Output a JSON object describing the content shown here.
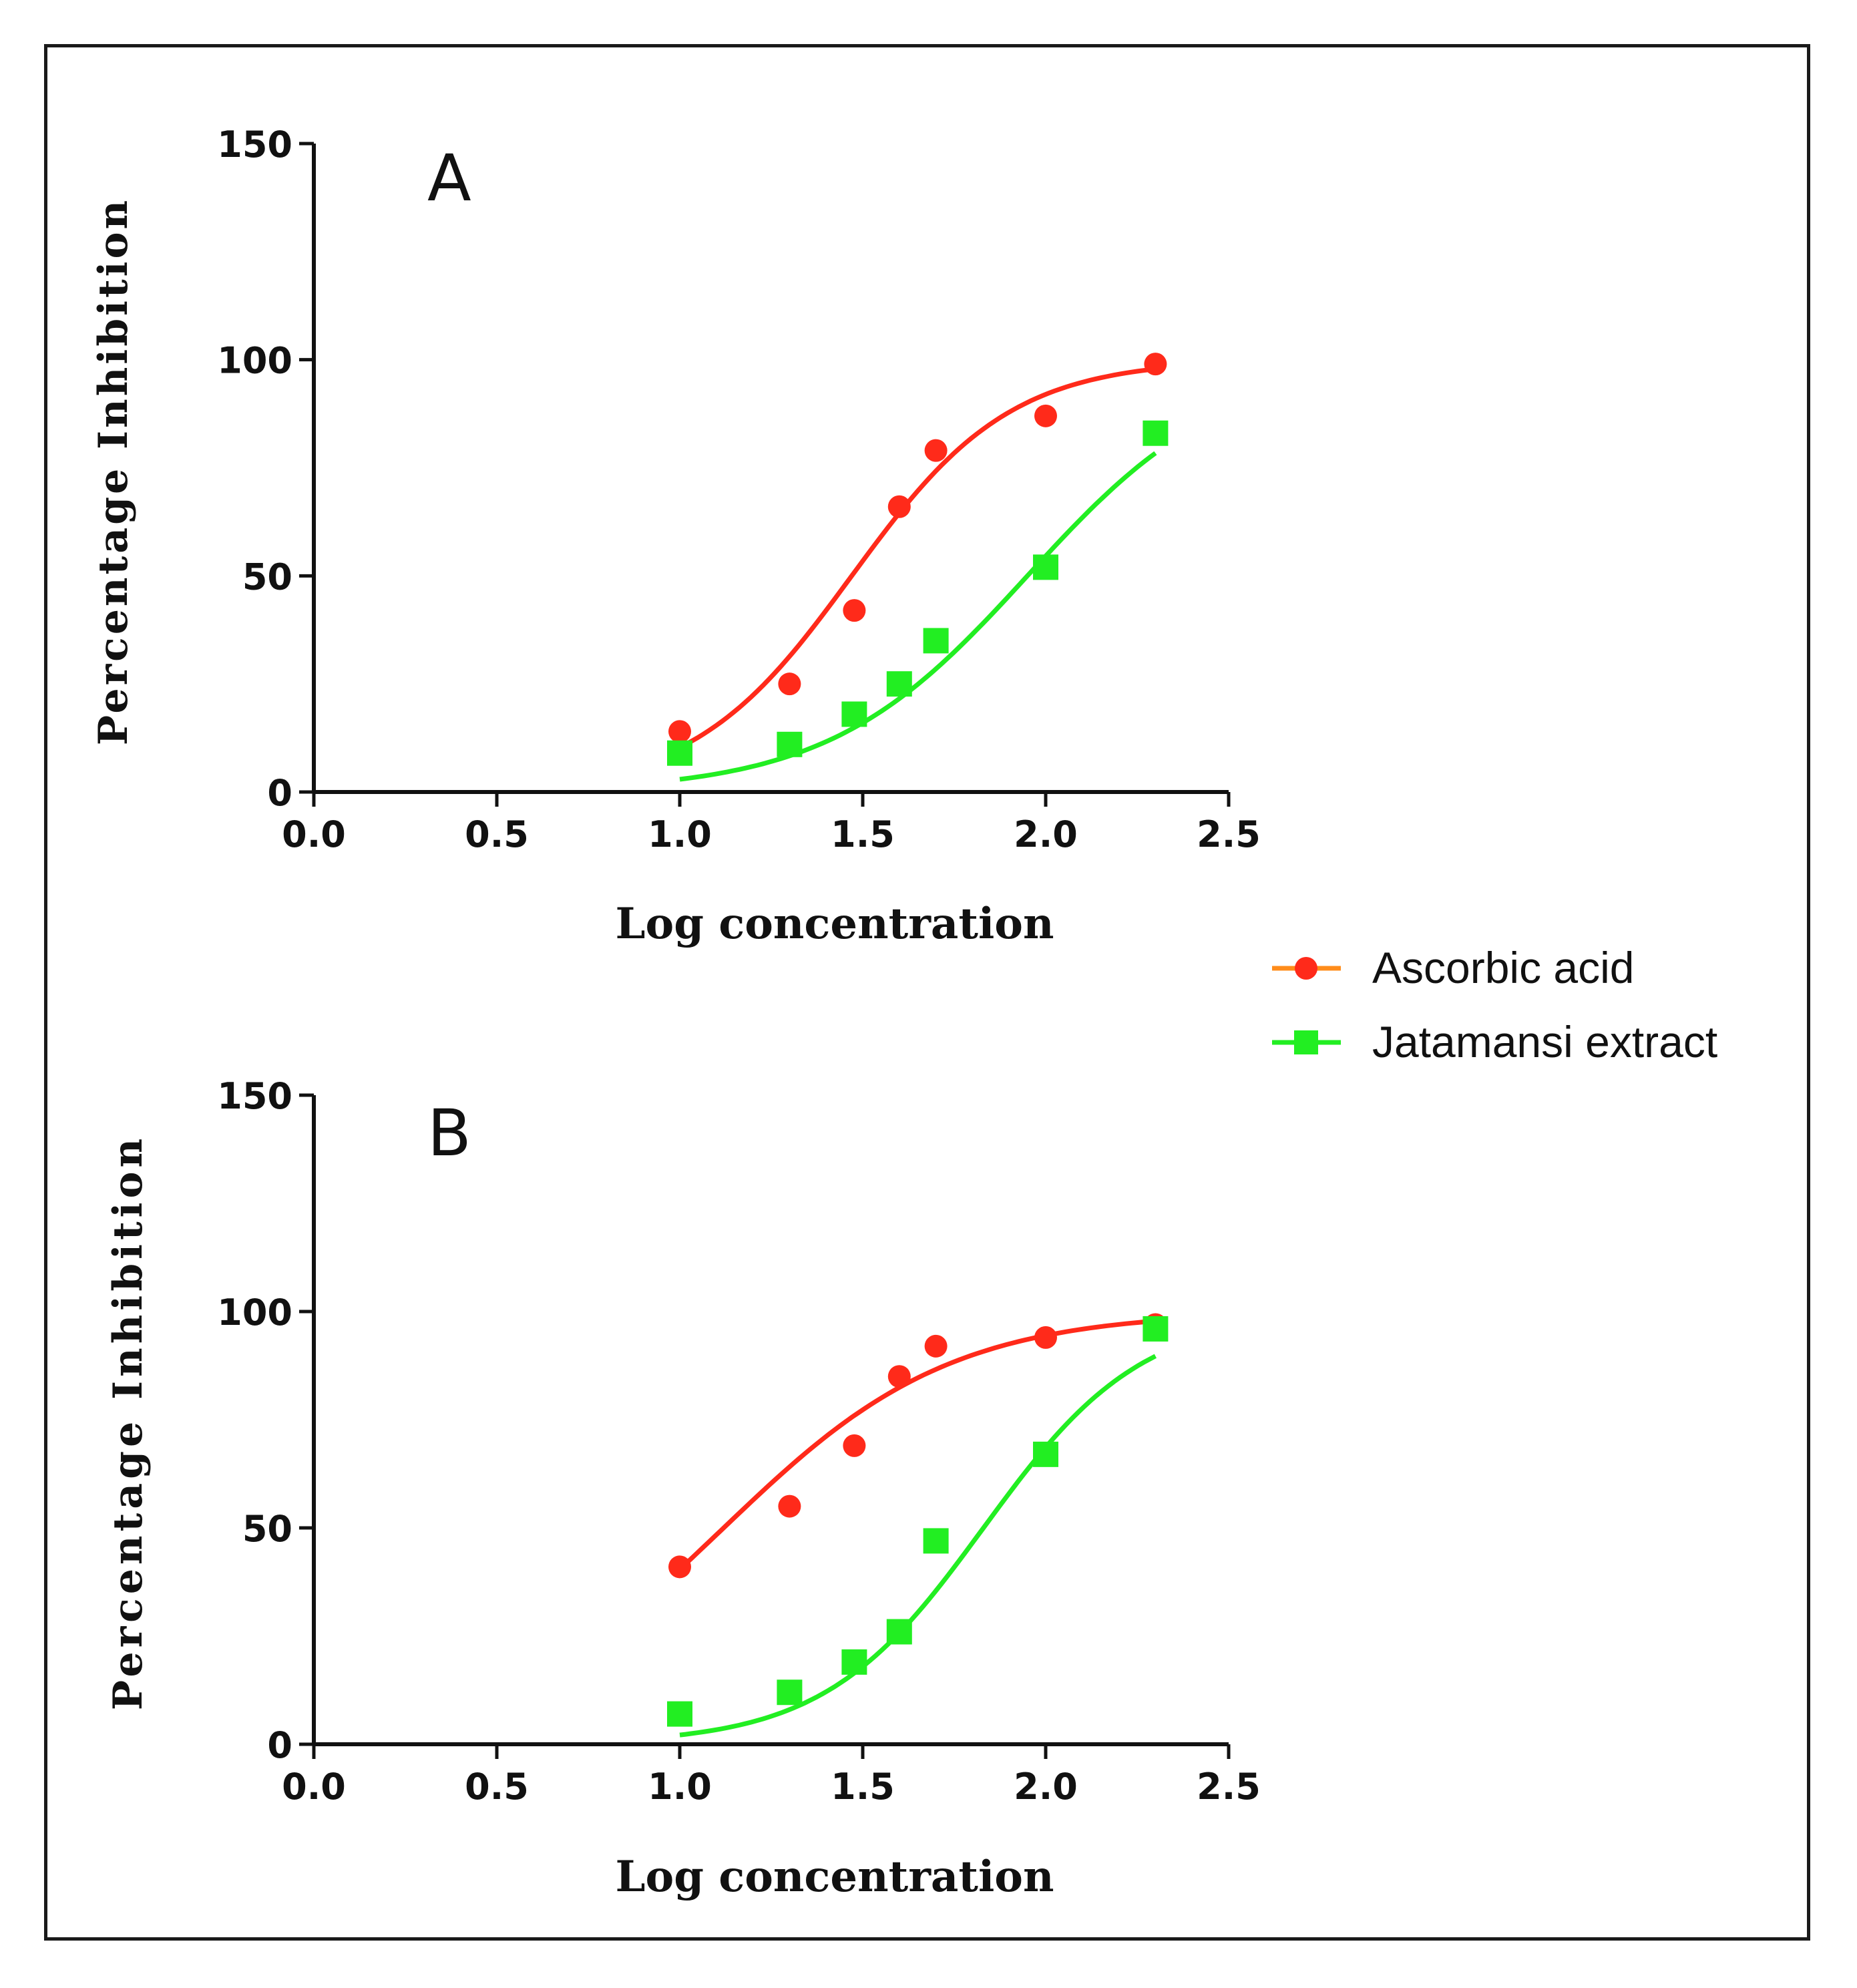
{
  "legend": [
    {
      "name": "Ascorbic acid",
      "color": "#ff2a1a",
      "marker": "circle"
    },
    {
      "name": "Jatamansi extract",
      "color": "#22ee22",
      "marker": "square"
    }
  ],
  "chart_data": [
    {
      "type": "scatter",
      "panel_label": "A",
      "xlabel": "Log concentration",
      "ylabel": "Percentage Inhibition",
      "xlim": [
        0.0,
        2.5
      ],
      "ylim": [
        0,
        150
      ],
      "x_ticks": [
        "0.0",
        "0.5",
        "1.0",
        "1.5",
        "2.0",
        "2.5"
      ],
      "y_ticks": [
        "0",
        "50",
        "100",
        "150"
      ],
      "x": [
        1.0,
        1.3,
        1.477,
        1.6,
        1.7,
        2.0,
        2.3
      ],
      "series": [
        {
          "name": "Ascorbic acid",
          "values": [
            14,
            25,
            42,
            66,
            79,
            87,
            99
          ],
          "fit": {
            "bottom": 0,
            "top": 100,
            "logEC50": 1.47,
            "hill": 2.0
          }
        },
        {
          "name": "Jatamansi extract",
          "values": [
            9,
            11,
            18,
            25,
            35,
            52,
            83
          ],
          "fit": {
            "bottom": 0,
            "top": 100,
            "logEC50": 1.95,
            "hill": 1.6
          }
        }
      ]
    },
    {
      "type": "scatter",
      "panel_label": "B",
      "xlabel": "Log concentration",
      "ylabel": "Percentage Inhibition",
      "xlim": [
        0.0,
        2.5
      ],
      "ylim": [
        0,
        150
      ],
      "x_ticks": [
        "0.0",
        "0.5",
        "1.0",
        "1.5",
        "2.0",
        "2.5"
      ],
      "y_ticks": [
        "0",
        "50",
        "100",
        "150"
      ],
      "x": [
        1.0,
        1.3,
        1.477,
        1.6,
        1.7,
        2.0,
        2.3
      ],
      "series": [
        {
          "name": "Ascorbic acid",
          "values": [
            41,
            55,
            69,
            85,
            92,
            94,
            97
          ],
          "fit": {
            "bottom": 0,
            "top": 100,
            "logEC50": 1.12,
            "hill": 1.4
          }
        },
        {
          "name": "Jatamansi extract",
          "values": [
            7,
            12,
            19,
            26,
            47,
            67,
            96
          ],
          "fit": {
            "bottom": 0,
            "top": 100,
            "logEC50": 1.83,
            "hill": 2.0
          }
        }
      ]
    }
  ]
}
